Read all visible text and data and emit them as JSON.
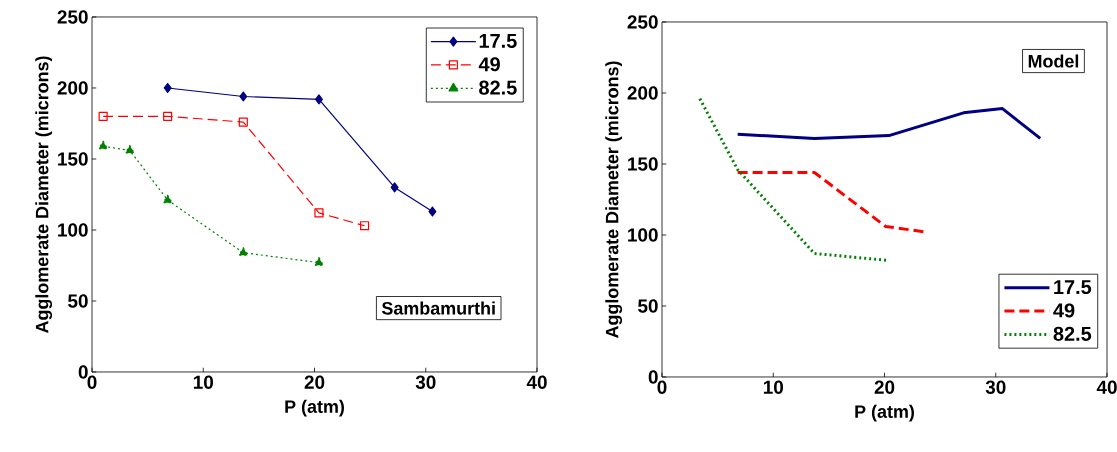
{
  "chart_data": [
    {
      "type": "line",
      "xlabel": "P (atm)",
      "ylabel": "Agglomerate Diameter (microns)",
      "xlim": [
        0,
        40
      ],
      "xticks": [
        0,
        10,
        20,
        30,
        40
      ],
      "ylim": [
        0,
        250
      ],
      "yticks": [
        0,
        50,
        100,
        150,
        200,
        250
      ],
      "grid": false,
      "legend": "top right",
      "annotations": [
        "Sambamurthi"
      ],
      "series": [
        {
          "name": "17.5",
          "color": "#000080",
          "marker": "diamond",
          "line_style": "solid",
          "x": [
            6.8,
            13.6,
            20.4,
            27.2,
            30.6
          ],
          "values": [
            200,
            194,
            192,
            130,
            113
          ]
        },
        {
          "name": "49",
          "color": "#ff0000",
          "marker": "square",
          "line_style": "dashed",
          "x": [
            1.0,
            6.8,
            13.6,
            20.4,
            24.5
          ],
          "values": [
            180,
            180,
            176,
            112,
            103
          ]
        },
        {
          "name": "82.5",
          "color": "#008000",
          "marker": "triangle",
          "line_style": "dotted",
          "x": [
            1.0,
            3.4,
            6.8,
            13.6,
            20.4
          ],
          "values": [
            159,
            156,
            121,
            84,
            77
          ]
        }
      ]
    },
    {
      "type": "line",
      "xlabel": "P (atm)",
      "ylabel": "Agglomerate Diameter (microns)",
      "xlim": [
        0,
        40
      ],
      "xticks": [
        0,
        10,
        20,
        30,
        40
      ],
      "ylim": [
        0,
        250
      ],
      "yticks": [
        0,
        50,
        100,
        150,
        200,
        250
      ],
      "grid": false,
      "legend": "bottom right",
      "annotations": [
        "Model"
      ],
      "series": [
        {
          "name": "17.5",
          "color": "#000080",
          "marker": "none",
          "line_style": "solid",
          "x": [
            6.8,
            13.7,
            20.4,
            27.1,
            30.6,
            34.0
          ],
          "values": [
            171,
            168,
            170,
            186,
            189,
            168
          ]
        },
        {
          "name": "49",
          "color": "#ff0000",
          "marker": "none",
          "line_style": "dashed",
          "x": [
            6.8,
            13.7,
            20.1,
            23.8
          ],
          "values": [
            144,
            144,
            106,
            102
          ]
        },
        {
          "name": "82.5",
          "color": "#008000",
          "marker": "none",
          "line_style": "dotted",
          "x": [
            3.4,
            6.8,
            13.7,
            20.4
          ],
          "values": [
            196,
            146,
            87,
            82
          ]
        }
      ]
    }
  ]
}
